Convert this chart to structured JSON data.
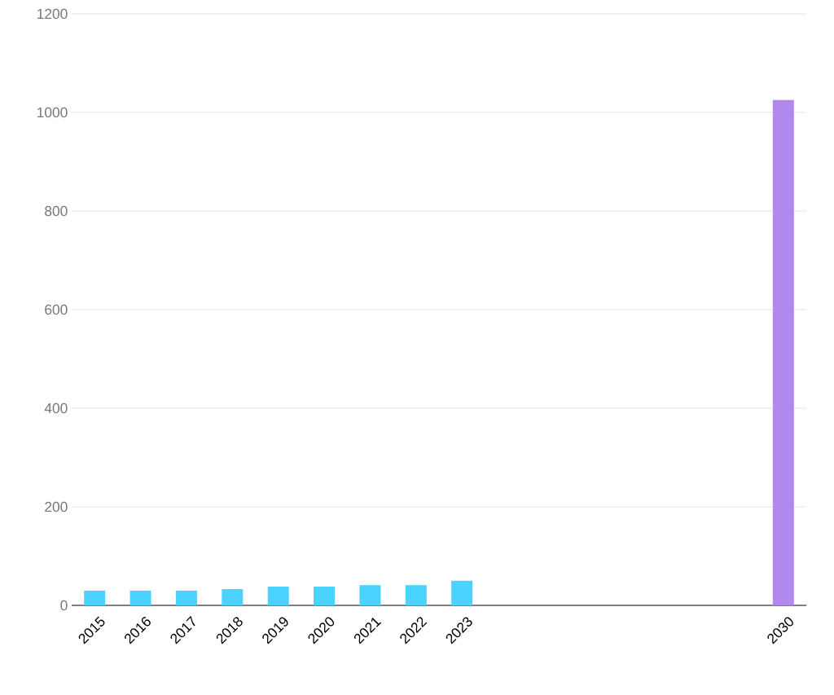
{
  "chart_data": {
    "type": "bar",
    "categories": [
      "2015",
      "2016",
      "2017",
      "2018",
      "2019",
      "2020",
      "2021",
      "2022",
      "2023",
      null,
      null,
      null,
      null,
      null,
      null,
      "2030"
    ],
    "values": [
      30,
      30,
      30,
      33,
      38,
      38,
      41,
      41,
      50,
      null,
      null,
      null,
      null,
      null,
      null,
      1025
    ],
    "colors": [
      "#4ad3fe",
      "#4ad3fe",
      "#4ad3fe",
      "#4ad3fe",
      "#4ad3fe",
      "#4ad3fe",
      "#4ad3fe",
      "#4ad3fe",
      "#4ad3fe",
      "#4ad3fe",
      "#4ad3fe",
      "#4ad3fe",
      "#4ad3fe",
      "#4ad3fe",
      "#4ad3fe",
      "#b088ee"
    ],
    "ylim": [
      0,
      1200
    ],
    "yticks": [
      0,
      200,
      400,
      600,
      800,
      1000,
      1200
    ],
    "grid": "y"
  }
}
